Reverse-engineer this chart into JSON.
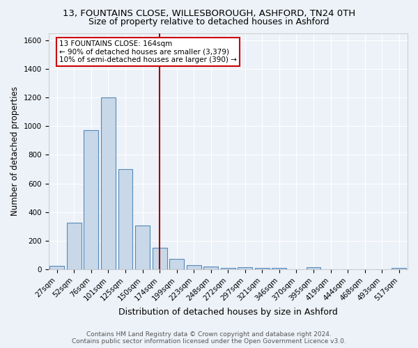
{
  "title": "13, FOUNTAINS CLOSE, WILLESBOROUGH, ASHFORD, TN24 0TH",
  "subtitle": "Size of property relative to detached houses in Ashford",
  "xlabel": "Distribution of detached houses by size in Ashford",
  "ylabel": "Number of detached properties",
  "categories": [
    "27sqm",
    "52sqm",
    "76sqm",
    "101sqm",
    "125sqm",
    "150sqm",
    "174sqm",
    "199sqm",
    "223sqm",
    "248sqm",
    "272sqm",
    "297sqm",
    "321sqm",
    "346sqm",
    "370sqm",
    "395sqm",
    "419sqm",
    "444sqm",
    "468sqm",
    "493sqm",
    "517sqm"
  ],
  "values": [
    25,
    325,
    970,
    1200,
    700,
    305,
    150,
    75,
    28,
    18,
    10,
    13,
    8,
    10,
    0,
    13,
    0,
    0,
    0,
    0,
    10
  ],
  "bar_color": "#c8d8e8",
  "bar_edge_color": "#5588bb",
  "vline_x": 6.0,
  "vline_color": "#990000",
  "annotation_title": "13 FOUNTAINS CLOSE: 164sqm",
  "annotation_line1": "← 90% of detached houses are smaller (3,379)",
  "annotation_line2": "10% of semi-detached houses are larger (390) →",
  "annotation_box_color": "#ffffff",
  "annotation_border_color": "#cc0000",
  "bg_color": "#edf2f8",
  "plot_bg_color": "#edf2f8",
  "grid_color": "#ffffff",
  "footer1": "Contains HM Land Registry data © Crown copyright and database right 2024.",
  "footer2": "Contains public sector information licensed under the Open Government Licence v3.0.",
  "ylim": [
    0,
    1650
  ],
  "title_fontsize": 9.5,
  "subtitle_fontsize": 9,
  "xlabel_fontsize": 9,
  "ylabel_fontsize": 8.5,
  "tick_fontsize": 7.5,
  "footer_fontsize": 6.5
}
